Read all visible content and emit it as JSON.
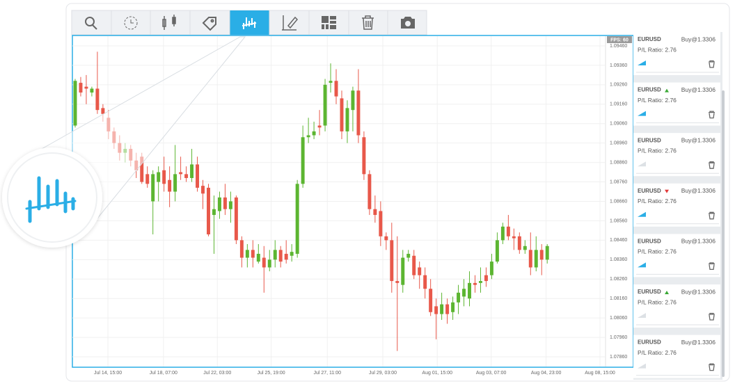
{
  "chart_data": {
    "type": "candlestick",
    "fps_label": "FPS: 60",
    "up_color": "#5cb531",
    "down_color": "#e8584a",
    "grid": true,
    "xlim": [
      -0.5,
      95.5
    ],
    "xticks": [
      {
        "value": 5.9,
        "label": "Jul 14, 15:00"
      },
      {
        "value": 15.9,
        "label": "Jul 18, 07:00"
      },
      {
        "value": 25.6,
        "label": "Jul 22, 03:00"
      },
      {
        "value": 35.3,
        "label": "Jul 25, 19:00"
      },
      {
        "value": 45.4,
        "label": "Jul 27, 11:00"
      },
      {
        "value": 55.4,
        "label": "Jul 29, 03:00"
      },
      {
        "value": 65.2,
        "label": "Aug 01, 15:00"
      },
      {
        "value": 74.9,
        "label": "Aug 03, 07:00"
      },
      {
        "value": 84.8,
        "label": "Aug 04, 23:00"
      },
      {
        "value": 94.5,
        "label": "Aug 08, 15:00"
      }
    ],
    "ylim": [
      1.0781,
      1.0951
    ],
    "yticks": [
      {
        "value": 1.0946,
        "label": "1.09460"
      },
      {
        "value": 1.0936,
        "label": "1.09360"
      },
      {
        "value": 1.0926,
        "label": "1.09260"
      },
      {
        "value": 1.0916,
        "label": "1.09160"
      },
      {
        "value": 1.0906,
        "label": "1.09060"
      },
      {
        "value": 1.0896,
        "label": "1.08960"
      },
      {
        "value": 1.0886,
        "label": "1.08860"
      },
      {
        "value": 1.0876,
        "label": "1.08760"
      },
      {
        "value": 1.0866,
        "label": "1.08660"
      },
      {
        "value": 1.0856,
        "label": "1.08560"
      },
      {
        "value": 1.0846,
        "label": "1.08460"
      },
      {
        "value": 1.0836,
        "label": "1.08360"
      },
      {
        "value": 1.0826,
        "label": "1.08260"
      },
      {
        "value": 1.0816,
        "label": "1.08160"
      },
      {
        "value": 1.0806,
        "label": "1.08060"
      },
      {
        "value": 1.0796,
        "label": "1.07960"
      },
      {
        "value": 1.0786,
        "label": "1.07860"
      }
    ],
    "open": [
      1.0905,
      1.0927,
      1.0925,
      1.0922,
      1.0924,
      1.0914,
      1.0909,
      1.0902,
      1.0896,
      1.0891,
      1.0893,
      1.0887,
      1.0889,
      1.088,
      1.0866,
      1.0876,
      1.0882,
      1.0877,
      1.0871,
      1.0881,
      1.088,
      1.0878,
      1.0885,
      1.0874,
      1.0873,
      1.0859,
      1.0861,
      1.0868,
      1.0862,
      1.0868,
      1.0846,
      1.0837,
      1.0841,
      1.0835,
      1.0837,
      1.0832,
      1.0836,
      1.0841,
      1.0839,
      1.0838,
      1.0839,
      1.0875,
      1.0899,
      1.09,
      1.0905,
      1.0905,
      1.0927,
      1.0928,
      1.0919,
      1.0902,
      1.0913,
      1.0923,
      1.0899,
      1.088,
      1.0862,
      1.0861,
      1.0848,
      1.0846,
      1.0825,
      1.0823,
      1.0837,
      1.0838,
      1.0832,
      1.0828,
      1.0821,
      1.0812,
      1.0808,
      1.0813,
      1.0809,
      1.0814,
      1.0817,
      1.0816,
      1.0824,
      1.0824,
      1.0828,
      1.0828,
      1.0835,
      1.0846,
      1.0853,
      1.0848,
      1.0848,
      1.0841,
      1.0841,
      1.0832,
      1.0841,
      1.0836
    ],
    "high": [
      1.0929,
      1.093,
      1.0931,
      1.0925,
      1.0943,
      1.0916,
      1.0913,
      1.0904,
      1.09,
      1.0896,
      1.0895,
      1.0891,
      1.0891,
      1.0884,
      1.0882,
      1.0884,
      1.0889,
      1.0884,
      1.0895,
      1.0889,
      1.0884,
      1.0893,
      1.0889,
      1.0877,
      1.0875,
      1.0869,
      1.0871,
      1.0875,
      1.0871,
      1.0869,
      1.0848,
      1.0844,
      1.0846,
      1.0844,
      1.0843,
      1.0841,
      1.0846,
      1.0843,
      1.0846,
      1.0844,
      1.0877,
      1.0905,
      1.0909,
      1.0907,
      1.0913,
      1.0929,
      1.0937,
      1.0934,
      1.0923,
      1.0918,
      1.0925,
      1.0934,
      1.0902,
      1.0882,
      1.0869,
      1.0866,
      1.085,
      1.0855,
      1.0848,
      1.0841,
      1.0841,
      1.0841,
      1.0835,
      1.0832,
      1.0826,
      1.0816,
      1.0819,
      1.0816,
      1.0817,
      1.0823,
      1.0826,
      1.083,
      1.0828,
      1.0832,
      1.0832,
      1.0839,
      1.085,
      1.0855,
      1.0859,
      1.0852,
      1.085,
      1.0846,
      1.085,
      1.0848,
      1.0844,
      1.0844
    ],
    "low": [
      1.0904,
      1.092,
      1.0916,
      1.092,
      1.0911,
      1.0907,
      1.0898,
      1.0893,
      1.0887,
      1.0886,
      1.0884,
      1.0878,
      1.0875,
      1.0873,
      1.0849,
      1.0866,
      1.0871,
      1.0863,
      1.0866,
      1.0877,
      1.0876,
      1.0876,
      1.0871,
      1.0862,
      1.0848,
      1.0839,
      1.0857,
      1.0859,
      1.0855,
      1.0844,
      1.0832,
      1.0832,
      1.0832,
      1.0834,
      1.0819,
      1.083,
      1.0832,
      1.0832,
      1.0834,
      1.0835,
      1.0837,
      1.0873,
      1.0896,
      1.0898,
      1.09,
      1.0902,
      1.0922,
      1.0916,
      1.0898,
      1.0896,
      1.0902,
      1.0896,
      1.0877,
      1.0859,
      1.0855,
      1.0843,
      1.0841,
      1.0819,
      1.0789,
      1.0819,
      1.0835,
      1.0826,
      1.0821,
      1.0816,
      1.0807,
      1.0795,
      1.0805,
      1.0803,
      1.0805,
      1.0808,
      1.0812,
      1.0812,
      1.0819,
      1.0819,
      1.0822,
      1.0826,
      1.0834,
      1.0844,
      1.0846,
      1.0841,
      1.0839,
      1.0839,
      1.0828,
      1.083,
      1.0828,
      1.0834
    ],
    "close": [
      1.0928,
      1.0922,
      1.0924,
      1.0924,
      1.0913,
      1.0911,
      1.0902,
      1.0896,
      1.0891,
      1.0893,
      1.0887,
      1.0882,
      1.0876,
      1.0875,
      1.088,
      1.0881,
      1.0875,
      1.0871,
      1.088,
      1.088,
      1.0878,
      1.0885,
      1.0873,
      1.087,
      1.0849,
      1.0862,
      1.0868,
      1.0862,
      1.0866,
      1.0846,
      1.0837,
      1.0841,
      1.0837,
      1.0839,
      1.0832,
      1.0836,
      1.0841,
      1.0835,
      1.0836,
      1.084,
      1.0875,
      1.0899,
      1.09,
      1.0902,
      1.0904,
      1.0926,
      1.0928,
      1.092,
      1.0902,
      1.0914,
      1.0923,
      1.09,
      1.088,
      1.0862,
      1.0859,
      1.0848,
      1.0846,
      1.0825,
      1.0824,
      1.0837,
      1.0839,
      1.0828,
      1.0828,
      1.0821,
      1.0809,
      1.0808,
      1.0813,
      1.0808,
      1.0814,
      1.0819,
      1.0821,
      1.0824,
      1.0823,
      1.0825,
      1.0825,
      1.0835,
      1.0846,
      1.0853,
      1.0848,
      1.0847,
      1.0841,
      1.0843,
      1.0832,
      1.0841,
      1.0836,
      1.0843
    ]
  },
  "sidebar": {
    "items": [
      {
        "symbol": "EURUSD",
        "order": "Buy@1.3306",
        "ratio": "P/L Ratio: 2.76",
        "signal_active": true
      },
      {
        "symbol": "EURUSD",
        "trend": "up",
        "order": "Buy@1.3306",
        "ratio": "P/L Ratio: 2.76",
        "signal_active": true
      },
      {
        "symbol": "EURUSD",
        "order": "Buy@1.3306",
        "ratio": "P/L Ratio: 2.76",
        "signal_active": false
      },
      {
        "symbol": "EURUSD",
        "trend": "down",
        "order": "Buy@1.3306",
        "ratio": "P/L Ratio: 2.76",
        "signal_active": true
      },
      {
        "symbol": "EURUSD",
        "order": "Buy@1.3306",
        "ratio": "P/L Ratio: 2.76",
        "signal_active": true
      },
      {
        "symbol": "EURUSD",
        "trend": "up",
        "order": "Buy@1.3306",
        "ratio": "P/L Ratio: 2.76",
        "signal_active": false
      },
      {
        "symbol": "EURUSD",
        "order": "Buy@1.3306",
        "ratio": "P/L Ratio: 2.76",
        "signal_active": false
      }
    ]
  }
}
